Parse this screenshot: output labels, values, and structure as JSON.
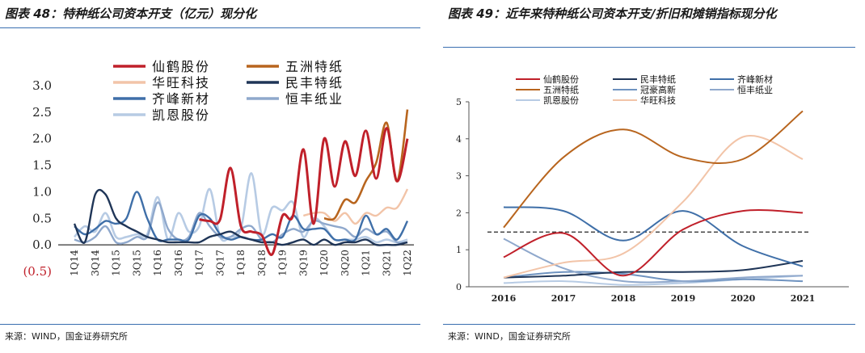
{
  "charts": [
    {
      "title": "图表 48：特种纸公司资本开支（亿元）现分化",
      "source": "来源：WIND，国金证券研究所"
    },
    {
      "title": "图表 49：近年来特种纸公司资本开支/折旧和摊销指标现分化",
      "source": "来源：WIND，国金证券研究所"
    }
  ],
  "colors": {
    "仙鹤股份": "#c0202a",
    "五洲特纸": "#b8651e",
    "华旺科技": "#f2c4a8",
    "民丰特纸": "#1f3557",
    "齐峰新材": "#3f6fa8",
    "恒丰纸业": "#8fa8cc",
    "凯恩股份": "#b7cbe4",
    "冠豪高新": "#6f93c0",
    "rule": "#3a6fb0"
  },
  "chart_data": [
    {
      "type": "line",
      "title": "特种纸公司资本开支（亿元）现分化",
      "unit": "亿元",
      "ylim": [
        -0.5,
        3.0
      ],
      "yticks": [
        "(0.5)",
        "0.0",
        "0.5",
        "1.0",
        "1.5",
        "2.0",
        "2.5",
        "3.0"
      ],
      "ytick_values": [
        -0.5,
        0.0,
        0.5,
        1.0,
        1.5,
        2.0,
        2.5,
        3.0
      ],
      "xtick_labels": [
        "1Q14",
        "3Q14",
        "1Q15",
        "3Q15",
        "1Q16",
        "3Q16",
        "1Q17",
        "3Q17",
        "1Q18",
        "3Q18",
        "1Q19",
        "3Q19",
        "1Q20",
        "3Q20",
        "1Q21",
        "3Q21",
        "1Q22"
      ],
      "x": [
        "1Q14",
        "2Q14",
        "3Q14",
        "4Q14",
        "1Q15",
        "2Q15",
        "3Q15",
        "4Q15",
        "1Q16",
        "2Q16",
        "3Q16",
        "4Q16",
        "1Q17",
        "2Q17",
        "3Q17",
        "4Q17",
        "1Q18",
        "2Q18",
        "3Q18",
        "4Q18",
        "1Q19",
        "2Q19",
        "3Q19",
        "4Q19",
        "1Q20",
        "2Q20",
        "3Q20",
        "4Q20",
        "1Q21",
        "2Q21",
        "3Q21",
        "4Q21",
        "1Q22"
      ],
      "legend": "top",
      "legend_order": [
        "仙鹤股份",
        "五洲特纸",
        "华旺科技",
        "民丰特纸",
        "齐峰新材",
        "恒丰纸业",
        "凯恩股份"
      ],
      "series": [
        {
          "name": "仙鹤股份",
          "values": [
            null,
            null,
            null,
            null,
            null,
            null,
            null,
            null,
            null,
            null,
            null,
            null,
            0.48,
            0.45,
            0.48,
            1.45,
            0.35,
            0.25,
            0.18,
            -0.18,
            0.55,
            0.55,
            1.8,
            0.4,
            2.0,
            1.1,
            1.95,
            1.3,
            2.15,
            1.25,
            2.2,
            1.2,
            2.0
          ]
        },
        {
          "name": "五洲特纸",
          "values": [
            null,
            null,
            null,
            null,
            null,
            null,
            null,
            null,
            null,
            null,
            null,
            null,
            null,
            null,
            null,
            null,
            null,
            null,
            null,
            null,
            null,
            null,
            null,
            null,
            0.5,
            0.5,
            0.85,
            0.8,
            1.2,
            1.55,
            2.3,
            1.2,
            2.55
          ]
        },
        {
          "name": "华旺科技",
          "values": [
            null,
            null,
            null,
            null,
            null,
            null,
            null,
            null,
            null,
            null,
            null,
            null,
            null,
            null,
            null,
            null,
            null,
            null,
            null,
            null,
            null,
            null,
            0.55,
            0.6,
            0.6,
            0.45,
            0.6,
            0.4,
            0.6,
            0.55,
            0.7,
            0.7,
            1.05
          ]
        },
        {
          "name": "民丰特纸",
          "values": [
            0.4,
            0.05,
            0.95,
            0.95,
            0.5,
            0.35,
            0.25,
            0.15,
            0.1,
            0.05,
            0.05,
            0.05,
            0.05,
            0.15,
            0.2,
            0.25,
            0.15,
            0.1,
            0.05,
            0.05,
            0.0,
            0.05,
            0.1,
            0.0,
            0.1,
            0.0,
            0.05,
            0.05,
            0.1,
            0.0,
            0.0,
            0.0,
            0.05
          ]
        },
        {
          "name": "齐峰新材",
          "values": [
            0.35,
            0.2,
            0.3,
            0.45,
            0.4,
            0.5,
            1.0,
            0.5,
            0.1,
            0.1,
            0.1,
            0.1,
            0.55,
            0.5,
            0.2,
            0.1,
            0.15,
            0.1,
            0.1,
            0.2,
            0.15,
            0.55,
            0.3,
            0.3,
            0.3,
            0.1,
            0.1,
            0.1,
            0.55,
            0.2,
            0.3,
            0.1,
            0.45
          ]
        },
        {
          "name": "恒丰纸业",
          "values": [
            0.1,
            0.05,
            0.15,
            0.35,
            0.05,
            0.05,
            0.15,
            0.15,
            0.8,
            0.3,
            0.1,
            0.15,
            0.6,
            0.35,
            0.15,
            0.15,
            0.3,
            0.35,
            0.1,
            0.05,
            0.2,
            0.3,
            0.25,
            0.45,
            0.4,
            0.35,
            0.3,
            0.15,
            0.3,
            0.2,
            0.25,
            0.05,
            0.05
          ]
        },
        {
          "name": "凯恩股份",
          "values": [
            0.15,
            0.35,
            0.25,
            0.6,
            0.15,
            0.15,
            0.2,
            0.2,
            0.9,
            0.1,
            0.6,
            0.25,
            0.35,
            1.05,
            0.15,
            0.15,
            0.3,
            1.35,
            0.2,
            0.7,
            0.65,
            0.8,
            0.15,
            0.5,
            0.35,
            0.1,
            0.1,
            0.1,
            0.15,
            0.05,
            0.1,
            0.05,
            0.1
          ]
        }
      ]
    },
    {
      "type": "line",
      "title": "近年来特种纸公司资本开支/折旧和摊销指标现分化",
      "ylim": [
        0,
        5
      ],
      "yticks": [
        "0",
        "1",
        "2",
        "3",
        "4",
        "5"
      ],
      "ytick_values": [
        0,
        1,
        2,
        3,
        4,
        5
      ],
      "categories": [
        "2016",
        "2017",
        "2018",
        "2019",
        "2020",
        "2021"
      ],
      "reference_line": 1.48,
      "legend": "top",
      "legend_order": [
        "仙鹤股份",
        "民丰特纸",
        "齐峰新材",
        "五洲特纸",
        "冠豪高新",
        "恒丰纸业",
        "凯恩股份",
        "华旺科技"
      ],
      "series": [
        {
          "name": "仙鹤股份",
          "values": [
            0.8,
            1.45,
            0.3,
            1.55,
            2.05,
            2.0
          ]
        },
        {
          "name": "民丰特纸",
          "values": [
            0.25,
            0.3,
            0.4,
            0.4,
            0.45,
            0.7
          ]
        },
        {
          "name": "齐峰新材",
          "values": [
            2.15,
            2.05,
            1.25,
            2.05,
            1.1,
            0.55
          ]
        },
        {
          "name": "五洲特纸",
          "values": [
            1.6,
            3.5,
            4.25,
            3.5,
            3.45,
            4.75
          ]
        },
        {
          "name": "冠豪高新",
          "values": [
            0.25,
            0.4,
            0.35,
            0.15,
            0.2,
            0.15
          ]
        },
        {
          "name": "恒丰纸业",
          "values": [
            1.3,
            0.5,
            0.15,
            0.15,
            0.25,
            0.3
          ]
        },
        {
          "name": "凯恩股份",
          "values": [
            0.1,
            0.15,
            0.05,
            0.1,
            0.2,
            0.3
          ]
        },
        {
          "name": "华旺科技",
          "values": [
            0.25,
            0.65,
            0.9,
            2.3,
            4.05,
            3.45
          ]
        }
      ]
    }
  ]
}
